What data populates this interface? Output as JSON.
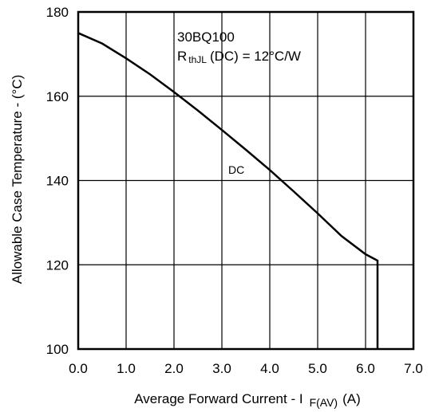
{
  "chart_data": {
    "type": "line",
    "title": "",
    "xlabel": "Average Forward Current - I",
    "xlabel_sub": "F(AV)",
    "xlabel_unit": "(A)",
    "ylabel": "Allowable Case Temperature - (°C)",
    "xlim": [
      0,
      7
    ],
    "ylim": [
      100,
      180
    ],
    "x_ticks": [
      0,
      1,
      2,
      3,
      4,
      5,
      6,
      7
    ],
    "x_tick_labels": [
      "0.0",
      "1.0",
      "2.0",
      "3.0",
      "4.0",
      "5.0",
      "6.0",
      "7.0"
    ],
    "y_ticks": [
      100,
      120,
      140,
      160,
      180
    ],
    "y_tick_labels": [
      "100",
      "120",
      "140",
      "160",
      "180"
    ],
    "grid": true,
    "series": [
      {
        "name": "DC",
        "x": [
          0,
          0.5,
          1.0,
          1.5,
          2.0,
          2.5,
          3.0,
          3.5,
          4.0,
          4.5,
          5.0,
          5.5,
          6.0,
          6.25,
          6.25
        ],
        "y": [
          175,
          172.5,
          169,
          165.2,
          161,
          156.6,
          152,
          147.3,
          142.5,
          137.4,
          132.2,
          126.8,
          122.5,
          121,
          100
        ]
      }
    ],
    "annotations": {
      "part_number": "30BQ100",
      "rth_prefix": "R",
      "rth_sub": "thJL",
      "rth_suffix": "(DC) = 12°C/W",
      "curve_label": "DC"
    }
  }
}
